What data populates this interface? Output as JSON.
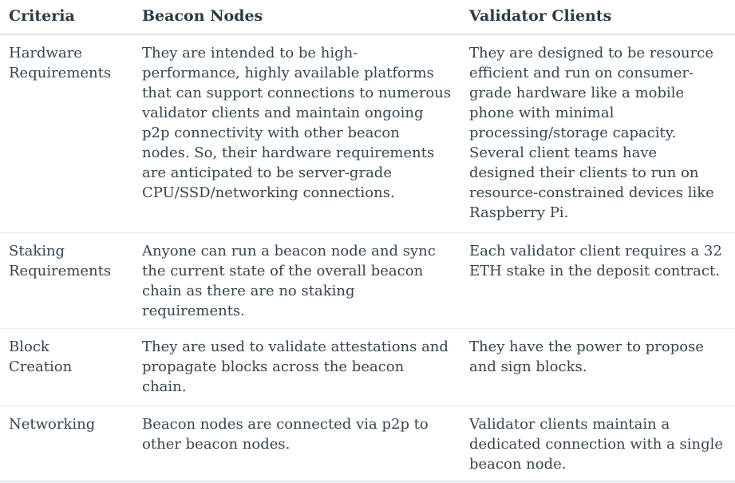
{
  "colors": {
    "background": "#ffffff",
    "header_text": "#2b3a45",
    "body_text": "#36454f",
    "divider": "#dce8f1"
  },
  "table": {
    "headers": {
      "criteria": "Criteria",
      "beacon": "Beacon Nodes",
      "validator": "Validator Clients"
    },
    "rows": [
      {
        "criteria": "Hardware Requirements",
        "beacon": "They are intended to be high-performance, highly available platforms that can support connections to numerous validator clients and maintain ongoing p2p connectivity with other beacon nodes. So, their hardware requirements are anticipated to be server-grade CPU/SSD/networking connections.",
        "validator": "They are designed to be resource efficient and run on consumer-grade hardware like a mobile phone with minimal processing/storage capacity. Several client teams have designed their clients to run on resource-constrained devices like Raspberry Pi."
      },
      {
        "criteria": "Staking Requirements",
        "beacon": "Anyone can run a beacon node and sync the current state of the overall beacon chain as there are no staking requirements.",
        "validator": "Each validator client requires a 32 ETH stake in the deposit contract."
      },
      {
        "criteria": "Block Creation",
        "beacon": "They are used to validate attestations and propagate blocks across the beacon chain.",
        "validator": "They have the power to propose and sign blocks."
      },
      {
        "criteria": "Networking",
        "beacon": "Beacon nodes are connected via p2p to other beacon nodes.",
        "validator": "Validator clients maintain a dedicated connection with a single beacon node."
      }
    ]
  }
}
